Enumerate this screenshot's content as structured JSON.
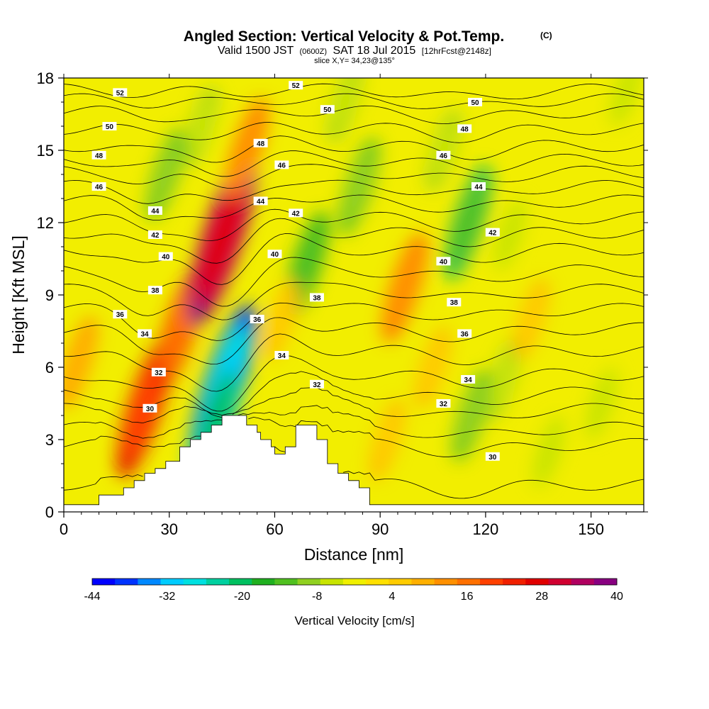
{
  "chart_data": {
    "type": "heatmap",
    "title_main": "Angled Section: Vertical Velocity & Pot.Temp.",
    "title_copyright": "(C)",
    "subtitle": {
      "valid_prefix": "Valid 1500 JST",
      "zone": "(0600Z)",
      "date": "SAT 18 Jul 2015",
      "forecast": "[12hrFcst@2148z]"
    },
    "slice_label": "slice X,Y= 34,23@135°",
    "xlabel": "Distance [nm]",
    "ylabel": "Height [Kft MSL]",
    "xlim": [
      0,
      165
    ],
    "ylim": [
      0,
      18
    ],
    "xticks": [
      0,
      30,
      60,
      90,
      120,
      150
    ],
    "yticks": [
      0,
      3,
      6,
      9,
      12,
      15,
      18
    ],
    "colorbar": {
      "label": "Vertical Velocity [cm/s]",
      "min": -44,
      "max": 40,
      "step": 4,
      "tick_values": [
        -44,
        -32,
        -20,
        -8,
        4,
        16,
        28,
        40
      ],
      "colors": [
        "#0000ff",
        "#0033ff",
        "#0088ff",
        "#00ccff",
        "#00e0e0",
        "#00d0a0",
        "#00c060",
        "#20b020",
        "#50c020",
        "#90d020",
        "#c8e400",
        "#f0f000",
        "#ffe000",
        "#ffcc00",
        "#ffb000",
        "#ff9000",
        "#ff7000",
        "#ff4000",
        "#f02000",
        "#e00000",
        "#d00030",
        "#b00060",
        "#880080"
      ]
    },
    "velocity_features": [
      {
        "x": 23,
        "y": 4.3,
        "value": 28
      },
      {
        "x": 33,
        "y": 7.6,
        "value": 22
      },
      {
        "x": 45,
        "y": 11.3,
        "value": 40
      },
      {
        "x": 52,
        "y": 15.0,
        "value": 16
      },
      {
        "x": 45,
        "y": 5.0,
        "value": -40
      },
      {
        "x": 43,
        "y": 3.6,
        "value": -30
      },
      {
        "x": 29,
        "y": 14.0,
        "value": -12
      },
      {
        "x": 39,
        "y": 16.0,
        "value": -8
      },
      {
        "x": 69,
        "y": 10.2,
        "value": -18
      },
      {
        "x": 84,
        "y": 13.5,
        "value": -14
      },
      {
        "x": 80,
        "y": 17.0,
        "value": -8
      },
      {
        "x": 97,
        "y": 9.3,
        "value": 18
      },
      {
        "x": 115,
        "y": 12.0,
        "value": -20
      },
      {
        "x": 116,
        "y": 4.0,
        "value": -12
      },
      {
        "x": 108,
        "y": 15.0,
        "value": -8
      },
      {
        "x": 127,
        "y": 11.5,
        "value": -6
      },
      {
        "x": 125,
        "y": 5.5,
        "value": -8
      },
      {
        "x": 138,
        "y": 2.5,
        "value": -6
      },
      {
        "x": 153,
        "y": 4.5,
        "value": -6
      },
      {
        "x": 4,
        "y": 6.2,
        "value": 12
      },
      {
        "x": 62,
        "y": 8.0,
        "value": 8
      },
      {
        "x": 92,
        "y": 3.0,
        "value": 8
      },
      {
        "x": 105,
        "y": 6.0,
        "value": 8
      },
      {
        "x": 133,
        "y": 8.0,
        "value": 8
      },
      {
        "x": 160,
        "y": 17.5,
        "value": -6
      }
    ],
    "theta_contours": [
      {
        "value": 30,
        "base": 1.0,
        "dip": 0.4,
        "labels": [
          {
            "x": 24.5,
            "y": 4.3
          },
          {
            "x": 122,
            "y": 2.3
          }
        ]
      },
      {
        "value": 31,
        "base": 2.7,
        "dip": 0.4
      },
      {
        "value": 32,
        "base": 3.4,
        "dip": 0.5,
        "labels": [
          {
            "x": 27,
            "y": 5.8
          },
          {
            "x": 72,
            "y": 5.3
          },
          {
            "x": 108,
            "y": 4.5
          }
        ]
      },
      {
        "value": 33,
        "base": 4.2,
        "dip": 0.6
      },
      {
        "value": 34,
        "base": 4.9,
        "dip": 0.8,
        "labels": [
          {
            "x": 23,
            "y": 7.4
          },
          {
            "x": 62,
            "y": 6.5
          },
          {
            "x": 115,
            "y": 5.5
          }
        ]
      },
      {
        "value": 35,
        "base": 5.7,
        "dip": 0.9
      },
      {
        "value": 36,
        "base": 6.7,
        "dip": 1.0,
        "labels": [
          {
            "x": 16,
            "y": 8.2
          },
          {
            "x": 55,
            "y": 8.0
          },
          {
            "x": 114,
            "y": 7.4
          }
        ]
      },
      {
        "value": 37,
        "base": 7.6,
        "dip": 1.0
      },
      {
        "value": 38,
        "base": 8.4,
        "dip": 1.0,
        "labels": [
          {
            "x": 26,
            "y": 9.2
          },
          {
            "x": 72,
            "y": 8.9
          },
          {
            "x": 111,
            "y": 8.7
          }
        ]
      },
      {
        "value": 39,
        "base": 9.2,
        "dip": 0.9
      },
      {
        "value": 40,
        "base": 10.0,
        "dip": 0.9,
        "labels": [
          {
            "x": 29,
            "y": 10.6
          },
          {
            "x": 60,
            "y": 10.7
          },
          {
            "x": 108,
            "y": 10.4
          }
        ]
      },
      {
        "value": 41,
        "base": 10.9,
        "dip": 0.8
      },
      {
        "value": 42,
        "base": 11.6,
        "dip": 0.7,
        "labels": [
          {
            "x": 26,
            "y": 11.5
          },
          {
            "x": 66,
            "y": 12.4
          },
          {
            "x": 122,
            "y": 11.6
          }
        ]
      },
      {
        "value": 43,
        "base": 12.2,
        "dip": 0.6
      },
      {
        "value": 44,
        "base": 12.9,
        "dip": 0.6,
        "labels": [
          {
            "x": 26,
            "y": 12.5
          },
          {
            "x": 56,
            "y": 12.9
          },
          {
            "x": 118,
            "y": 13.5
          }
        ]
      },
      {
        "value": 45,
        "base": 13.5,
        "dip": 0.5
      },
      {
        "value": 46,
        "base": 14.1,
        "dip": 0.4,
        "labels": [
          {
            "x": 10,
            "y": 13.5
          },
          {
            "x": 62,
            "y": 14.4
          },
          {
            "x": 108,
            "y": 14.8
          }
        ]
      },
      {
        "value": 47,
        "base": 14.6,
        "dip": 0.3
      },
      {
        "value": 48,
        "base": 15.2,
        "dip": 0.3,
        "labels": [
          {
            "x": 10,
            "y": 14.8
          },
          {
            "x": 56,
            "y": 15.3
          },
          {
            "x": 114,
            "y": 15.9
          }
        ]
      },
      {
        "value": 49,
        "base": 15.9,
        "dip": 0.2
      },
      {
        "value": 50,
        "base": 16.6,
        "dip": 0.2,
        "labels": [
          {
            "x": 13,
            "y": 16.0
          },
          {
            "x": 75,
            "y": 16.7
          },
          {
            "x": 117,
            "y": 17.0
          }
        ]
      },
      {
        "value": 51,
        "base": 17.1,
        "dip": 0.1
      },
      {
        "value": 52,
        "base": 17.5,
        "dip": 0.1,
        "labels": [
          {
            "x": 16,
            "y": 17.4
          },
          {
            "x": 66,
            "y": 17.7
          }
        ]
      }
    ],
    "terrain": [
      [
        0,
        0.3
      ],
      [
        10,
        0.3
      ],
      [
        10,
        0.7
      ],
      [
        17,
        0.7
      ],
      [
        17,
        1.0
      ],
      [
        20,
        1.0
      ],
      [
        20,
        1.3
      ],
      [
        23,
        1.3
      ],
      [
        23,
        1.6
      ],
      [
        26,
        1.6
      ],
      [
        26,
        1.8
      ],
      [
        29,
        1.8
      ],
      [
        29,
        2.1
      ],
      [
        33,
        2.1
      ],
      [
        33,
        2.7
      ],
      [
        36,
        2.7
      ],
      [
        36,
        3.0
      ],
      [
        39,
        3.0
      ],
      [
        39,
        3.3
      ],
      [
        42,
        3.3
      ],
      [
        42,
        3.6
      ],
      [
        45,
        3.6
      ],
      [
        45,
        4.0
      ],
      [
        52,
        4.0
      ],
      [
        52,
        3.6
      ],
      [
        55,
        3.6
      ],
      [
        55,
        3.3
      ],
      [
        56,
        3.3
      ],
      [
        56,
        3.0
      ],
      [
        59,
        3.0
      ],
      [
        59,
        2.7
      ],
      [
        60,
        2.7
      ],
      [
        60,
        2.4
      ],
      [
        63,
        2.4
      ],
      [
        63,
        2.7
      ],
      [
        66,
        2.7
      ],
      [
        66,
        3.6
      ],
      [
        72,
        3.6
      ],
      [
        72,
        3.0
      ],
      [
        75,
        3.0
      ],
      [
        75,
        2.0
      ],
      [
        78,
        2.0
      ],
      [
        78,
        1.6
      ],
      [
        81,
        1.6
      ],
      [
        81,
        1.3
      ],
      [
        84,
        1.3
      ],
      [
        84,
        1.0
      ],
      [
        87,
        1.0
      ],
      [
        87,
        0.3
      ],
      [
        165,
        0.3
      ]
    ]
  }
}
